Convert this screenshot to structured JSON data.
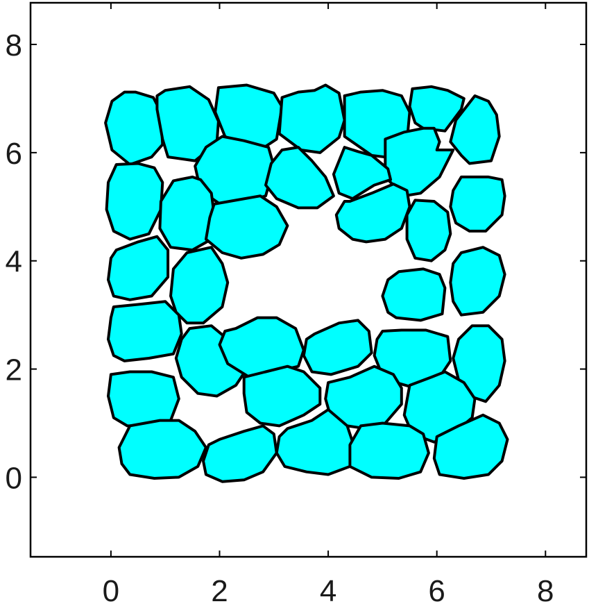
{
  "chart_data": {
    "type": "scatter",
    "title": "",
    "xlabel": "",
    "ylabel": "",
    "xlim": [
      -1.48,
      8.75
    ],
    "ylim": [
      -1.47,
      8.77
    ],
    "x_ticks": [
      "0",
      "2",
      "4",
      "6",
      "8"
    ],
    "y_ticks": [
      "0",
      "2",
      "4",
      "6",
      "8"
    ],
    "grid": false,
    "legend": "none",
    "fill_color": "#00ffff",
    "edge_color": "#000000",
    "cells": [
      {
        "x": [
          0.45,
          0.78,
          0.92,
          0.95,
          0.75,
          0.35,
          0.02,
          -0.1,
          0.02,
          0.25
        ],
        "y": [
          7.12,
          7.02,
          6.75,
          6.15,
          5.92,
          5.78,
          6.05,
          6.55,
          6.95,
          7.12
        ]
      },
      {
        "x": [
          1.0,
          1.45,
          1.8,
          1.98,
          1.95,
          1.55,
          1.05,
          0.95,
          0.85,
          0.85
        ],
        "y": [
          7.15,
          7.22,
          6.98,
          6.58,
          6.18,
          5.85,
          5.92,
          6.25,
          6.8,
          7.05
        ]
      },
      {
        "x": [
          1.98,
          2.5,
          3.0,
          3.15,
          3.05,
          2.75,
          2.45,
          2.1,
          1.92
        ],
        "y": [
          7.2,
          7.25,
          7.1,
          6.85,
          6.25,
          6.05,
          6.12,
          6.3,
          6.75
        ]
      },
      {
        "x": [
          3.15,
          3.45,
          3.75,
          3.95,
          4.2,
          4.3,
          4.2,
          3.85,
          3.5,
          3.1
        ],
        "y": [
          7.02,
          7.12,
          7.15,
          7.25,
          7.1,
          6.6,
          6.28,
          6.0,
          6.05,
          6.35
        ]
      },
      {
        "x": [
          4.3,
          4.6,
          5.0,
          5.35,
          5.5,
          5.45,
          5.2,
          4.8,
          4.3
        ],
        "y": [
          7.05,
          7.12,
          7.15,
          7.05,
          6.75,
          6.2,
          5.9,
          5.95,
          6.3
        ]
      },
      {
        "x": [
          5.55,
          5.9,
          6.2,
          6.5,
          6.45,
          6.15,
          5.75,
          5.6,
          5.5
        ],
        "y": [
          7.18,
          7.22,
          7.15,
          7.0,
          6.8,
          6.4,
          6.45,
          6.55,
          6.85
        ]
      },
      {
        "x": [
          6.7,
          6.95,
          7.1,
          7.15,
          7.0,
          6.6,
          6.45,
          6.25,
          6.35
        ],
        "y": [
          7.05,
          6.95,
          6.7,
          6.3,
          5.85,
          5.8,
          5.95,
          6.2,
          6.6
        ]
      },
      {
        "x": [
          5.05,
          5.4,
          5.75,
          5.95,
          6.05,
          6.0,
          6.3,
          6.05,
          5.7,
          5.4,
          5.05
        ],
        "y": [
          6.25,
          6.38,
          6.45,
          6.45,
          6.2,
          6.05,
          6.05,
          5.55,
          5.25,
          5.2,
          5.55
        ]
      },
      {
        "x": [
          2.05,
          2.45,
          2.9,
          3.0,
          2.85,
          2.5,
          2.05,
          1.65,
          1.55,
          1.75
        ],
        "y": [
          6.3,
          6.22,
          6.1,
          5.75,
          5.2,
          5.1,
          5.02,
          5.3,
          5.75,
          6.1
        ]
      },
      {
        "x": [
          3.15,
          3.45,
          3.7,
          3.95,
          4.1,
          3.8,
          3.45,
          3.05,
          2.85,
          2.95
        ],
        "y": [
          6.05,
          6.1,
          5.85,
          5.55,
          5.2,
          4.98,
          4.98,
          5.15,
          5.4,
          5.8
        ]
      },
      {
        "x": [
          4.3,
          4.55,
          4.8,
          5.1,
          5.15,
          4.85,
          4.45,
          4.2,
          4.1
        ],
        "y": [
          6.1,
          6.02,
          5.95,
          5.7,
          5.5,
          5.4,
          5.15,
          5.25,
          5.6
        ]
      },
      {
        "x": [
          0.1,
          0.5,
          0.8,
          0.95,
          0.92,
          0.7,
          0.35,
          0.05,
          -0.08,
          -0.05
        ],
        "y": [
          5.78,
          5.8,
          5.72,
          5.45,
          4.95,
          4.5,
          4.4,
          4.55,
          4.95,
          5.45
        ]
      },
      {
        "x": [
          1.15,
          1.5,
          1.65,
          1.85,
          1.9,
          1.85,
          1.5,
          1.1,
          0.9,
          0.92
        ],
        "y": [
          5.48,
          5.55,
          5.5,
          5.25,
          4.85,
          4.4,
          4.2,
          4.25,
          4.6,
          5.1
        ]
      },
      {
        "x": [
          1.9,
          2.3,
          2.75,
          3.05,
          3.25,
          3.1,
          2.8,
          2.4,
          2.05,
          1.75,
          1.82
        ],
        "y": [
          5.05,
          5.12,
          5.2,
          5.0,
          4.65,
          4.3,
          4.12,
          4.05,
          4.15,
          4.4,
          4.8
        ]
      },
      {
        "x": [
          4.4,
          4.8,
          5.2,
          5.45,
          5.5,
          5.35,
          5.05,
          4.7,
          4.45,
          4.2,
          4.15,
          4.3
        ],
        "y": [
          5.1,
          5.25,
          5.42,
          5.3,
          5.0,
          4.6,
          4.4,
          4.35,
          4.4,
          4.6,
          4.85,
          5.1
        ]
      },
      {
        "x": [
          5.6,
          5.95,
          6.2,
          6.25,
          6.15,
          5.9,
          5.6,
          5.45,
          5.45
        ],
        "y": [
          5.12,
          5.1,
          4.9,
          4.5,
          4.2,
          4.0,
          4.05,
          4.4,
          4.85
        ]
      },
      {
        "x": [
          6.45,
          6.95,
          7.2,
          7.25,
          7.2,
          6.9,
          6.6,
          6.35,
          6.25,
          6.3
        ],
        "y": [
          5.55,
          5.55,
          5.5,
          5.2,
          4.85,
          4.55,
          4.55,
          4.7,
          5.0,
          5.3
        ]
      },
      {
        "x": [
          0.1,
          0.5,
          0.85,
          1.05,
          1.05,
          0.75,
          0.35,
          0.05,
          -0.05,
          0.0
        ],
        "y": [
          4.2,
          4.35,
          4.45,
          4.2,
          3.7,
          3.35,
          3.28,
          3.35,
          3.65,
          4.05
        ]
      },
      {
        "x": [
          1.4,
          1.85,
          2.05,
          2.15,
          2.05,
          1.7,
          1.4,
          1.2,
          1.1,
          1.15
        ],
        "y": [
          4.15,
          4.25,
          3.95,
          3.6,
          3.15,
          2.85,
          2.85,
          3.05,
          3.35,
          3.85
        ]
      },
      {
        "x": [
          5.3,
          5.75,
          6.05,
          6.15,
          6.1,
          5.7,
          5.25,
          5.1,
          5.0,
          5.1
        ],
        "y": [
          3.8,
          3.85,
          3.75,
          3.5,
          3.02,
          2.9,
          2.95,
          3.05,
          3.35,
          3.65
        ]
      },
      {
        "x": [
          6.45,
          6.85,
          7.15,
          7.25,
          7.15,
          6.85,
          6.45,
          6.3,
          6.25,
          6.3
        ],
        "y": [
          4.15,
          4.25,
          4.1,
          3.75,
          3.35,
          3.05,
          3.0,
          3.25,
          3.6,
          3.95
        ]
      },
      {
        "x": [
          0.05,
          0.55,
          1.0,
          1.25,
          1.3,
          1.15,
          0.7,
          0.25,
          0.05,
          -0.05,
          0.0
        ],
        "y": [
          3.15,
          3.2,
          3.25,
          3.0,
          2.65,
          2.28,
          2.2,
          2.15,
          2.25,
          2.55,
          2.95
        ]
      },
      {
        "x": [
          1.45,
          1.85,
          2.15,
          2.4,
          2.5,
          2.3,
          1.95,
          1.6,
          1.3,
          1.2,
          1.3
        ],
        "y": [
          2.75,
          2.8,
          2.55,
          2.3,
          2.0,
          1.7,
          1.5,
          1.55,
          1.85,
          2.2,
          2.55
        ]
      },
      {
        "x": [
          2.3,
          2.7,
          3.05,
          3.4,
          3.55,
          3.45,
          3.0,
          2.55,
          2.15,
          2.0,
          2.1
        ],
        "y": [
          2.75,
          2.95,
          2.95,
          2.75,
          2.35,
          2.05,
          1.95,
          1.85,
          2.1,
          2.45,
          2.7
        ]
      },
      {
        "x": [
          3.75,
          4.2,
          4.55,
          4.75,
          4.8,
          4.55,
          4.05,
          3.7,
          3.55,
          3.6
        ],
        "y": [
          2.65,
          2.85,
          2.9,
          2.7,
          2.3,
          2.05,
          1.9,
          1.95,
          2.25,
          2.55
        ]
      },
      {
        "x": [
          5.0,
          5.35,
          5.8,
          6.2,
          6.25,
          6.05,
          5.6,
          5.25,
          4.95,
          4.85,
          4.9
        ],
        "y": [
          2.7,
          2.72,
          2.72,
          2.6,
          2.15,
          1.85,
          1.65,
          1.75,
          2.0,
          2.25,
          2.55
        ]
      },
      {
        "x": [
          6.65,
          6.95,
          7.2,
          7.25,
          7.15,
          6.9,
          6.6,
          6.4,
          6.3,
          6.4
        ],
        "y": [
          2.8,
          2.8,
          2.55,
          2.15,
          1.7,
          1.4,
          1.5,
          1.8,
          2.2,
          2.55
        ]
      },
      {
        "x": [
          0.0,
          0.35,
          0.75,
          1.15,
          1.25,
          1.1,
          0.75,
          0.3,
          0.05,
          -0.05
        ],
        "y": [
          1.9,
          1.95,
          1.95,
          1.85,
          1.45,
          1.05,
          0.95,
          0.95,
          1.1,
          1.5
        ]
      },
      {
        "x": [
          2.45,
          2.85,
          3.25,
          3.55,
          3.85,
          3.85,
          3.55,
          3.1,
          2.75,
          2.5,
          2.45
        ],
        "y": [
          1.85,
          1.95,
          2.05,
          1.95,
          1.65,
          1.35,
          1.15,
          0.95,
          1.0,
          1.2,
          1.55
        ]
      },
      {
        "x": [
          4.0,
          4.4,
          4.85,
          5.2,
          5.35,
          5.35,
          5.05,
          4.7,
          4.35,
          4.05,
          3.95
        ],
        "y": [
          1.75,
          1.85,
          2.05,
          1.9,
          1.65,
          1.35,
          1.0,
          0.9,
          0.95,
          1.1,
          1.45
        ]
      },
      {
        "x": [
          5.5,
          5.9,
          6.15,
          6.5,
          6.7,
          6.65,
          6.35,
          5.95,
          5.55,
          5.4
        ],
        "y": [
          1.7,
          1.85,
          1.95,
          1.75,
          1.45,
          1.1,
          0.85,
          0.65,
          0.8,
          1.15
        ]
      },
      {
        "x": [
          0.35,
          0.9,
          1.25,
          1.55,
          1.75,
          1.6,
          1.25,
          0.8,
          0.35,
          0.2,
          0.15
        ],
        "y": [
          0.95,
          1.05,
          1.05,
          0.85,
          0.55,
          0.2,
          0.0,
          -0.02,
          0.05,
          0.25,
          0.55
        ]
      },
      {
        "x": [
          2.0,
          2.45,
          2.8,
          3.0,
          3.05,
          2.8,
          2.45,
          2.05,
          1.75,
          1.7,
          1.8
        ],
        "y": [
          0.7,
          0.85,
          0.95,
          0.8,
          0.45,
          0.1,
          -0.05,
          -0.08,
          0.05,
          0.3,
          0.6
        ]
      },
      {
        "x": [
          3.25,
          3.7,
          4.0,
          4.35,
          4.5,
          4.4,
          4.0,
          3.6,
          3.2,
          3.05,
          3.1
        ],
        "y": [
          0.9,
          1.05,
          1.25,
          0.95,
          0.5,
          0.2,
          0.05,
          0.1,
          0.2,
          0.45,
          0.75
        ]
      },
      {
        "x": [
          4.6,
          5.0,
          5.5,
          5.75,
          5.85,
          5.7,
          5.3,
          4.8,
          4.4,
          4.4
        ],
        "y": [
          0.95,
          1.0,
          0.95,
          0.8,
          0.45,
          0.1,
          -0.02,
          0.0,
          0.2,
          0.6
        ]
      },
      {
        "x": [
          6.0,
          6.4,
          6.85,
          7.15,
          7.3,
          7.2,
          6.95,
          6.5,
          6.05,
          5.95
        ],
        "y": [
          0.75,
          0.95,
          1.15,
          1.0,
          0.7,
          0.3,
          0.05,
          -0.02,
          0.05,
          0.35
        ]
      }
    ]
  }
}
